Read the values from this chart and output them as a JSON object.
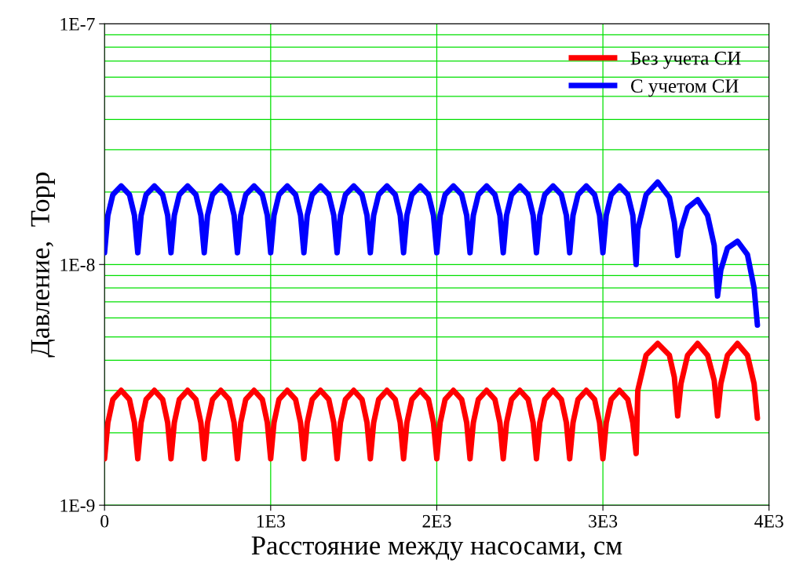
{
  "chart_data": {
    "type": "line",
    "xlabel": "Расстояние между насосами, см",
    "ylabel": "Давление,  Торр",
    "log": "y",
    "grid": true,
    "legend": "top right",
    "line_style": "solid",
    "marker": "none",
    "xlim": [
      0,
      4000
    ],
    "xticks": [
      0,
      {
        "value": 1000,
        "label": "1E3"
      },
      {
        "value": 2000,
        "label": "2E3"
      },
      {
        "value": 3000,
        "label": "3E3"
      },
      {
        "value": 4000,
        "label": "4E3"
      }
    ],
    "ylim": [
      1e-09,
      1e-07
    ],
    "yticks": [
      {
        "value": 1e-09,
        "label": "1E-9"
      },
      {
        "value": 1e-08,
        "label": "1E-8"
      },
      {
        "value": 1e-07,
        "label": "1E-7"
      }
    ],
    "x": [
      0,
      20,
      50,
      100,
      150,
      180,
      200,
      220,
      250,
      300,
      350,
      380,
      400,
      420,
      450,
      500,
      550,
      580,
      600,
      620,
      650,
      700,
      750,
      780,
      800,
      820,
      850,
      900,
      950,
      980,
      1000,
      1020,
      1050,
      1100,
      1150,
      1180,
      1200,
      1220,
      1250,
      1300,
      1350,
      1380,
      1400,
      1420,
      1450,
      1500,
      1550,
      1580,
      1600,
      1620,
      1650,
      1700,
      1750,
      1780,
      1800,
      1820,
      1850,
      1900,
      1950,
      1980,
      2000,
      2020,
      2050,
      2100,
      2150,
      2180,
      2200,
      2220,
      2250,
      2300,
      2350,
      2380,
      2400,
      2420,
      2450,
      2500,
      2550,
      2580,
      2600,
      2620,
      2650,
      2700,
      2750,
      2780,
      2800,
      2820,
      2850,
      2900,
      2950,
      2980,
      3000,
      3020,
      3050,
      3100,
      3150,
      3180,
      3200,
      3210,
      3260,
      3330,
      3400,
      3430,
      3450,
      3470,
      3510,
      3570,
      3630,
      3670,
      3690,
      3710,
      3750,
      3810,
      3870,
      3910,
      3930
    ],
    "series": [
      {
        "name": "Без учета СИ",
        "color": "#ff0000",
        "values": [
          1.56e-09,
          2.2e-09,
          2.75e-09,
          3e-09,
          2.75e-09,
          2.2e-09,
          1.56e-09,
          2.2e-09,
          2.75e-09,
          3e-09,
          2.75e-09,
          2.2e-09,
          1.56e-09,
          2.2e-09,
          2.75e-09,
          3e-09,
          2.75e-09,
          2.2e-09,
          1.56e-09,
          2.2e-09,
          2.75e-09,
          3e-09,
          2.75e-09,
          2.2e-09,
          1.56e-09,
          2.2e-09,
          2.75e-09,
          3e-09,
          2.75e-09,
          2.2e-09,
          1.56e-09,
          2.2e-09,
          2.75e-09,
          3e-09,
          2.75e-09,
          2.2e-09,
          1.56e-09,
          2.2e-09,
          2.75e-09,
          3e-09,
          2.75e-09,
          2.2e-09,
          1.56e-09,
          2.2e-09,
          2.75e-09,
          3e-09,
          2.75e-09,
          2.2e-09,
          1.56e-09,
          2.2e-09,
          2.75e-09,
          3e-09,
          2.75e-09,
          2.2e-09,
          1.56e-09,
          2.2e-09,
          2.75e-09,
          3e-09,
          2.75e-09,
          2.2e-09,
          1.56e-09,
          2.2e-09,
          2.75e-09,
          3e-09,
          2.75e-09,
          2.2e-09,
          1.56e-09,
          2.2e-09,
          2.75e-09,
          3e-09,
          2.75e-09,
          2.2e-09,
          1.56e-09,
          2.2e-09,
          2.75e-09,
          3e-09,
          2.75e-09,
          2.2e-09,
          1.56e-09,
          2.2e-09,
          2.75e-09,
          3e-09,
          2.75e-09,
          2.2e-09,
          1.56e-09,
          2.2e-09,
          2.75e-09,
          3e-09,
          2.75e-09,
          2.2e-09,
          1.56e-09,
          2.2e-09,
          2.75e-09,
          3e-09,
          2.75e-09,
          2.2e-09,
          1.64e-09,
          3e-09,
          4.2e-09,
          4.7e-09,
          4.2e-09,
          3.4e-09,
          2.35e-09,
          3.2e-09,
          4.2e-09,
          4.7e-09,
          4.2e-09,
          3.3e-09,
          2.35e-09,
          3.2e-09,
          4.2e-09,
          4.7e-09,
          4.2e-09,
          3.2e-09,
          2.3e-09
        ]
      },
      {
        "name": "С учетом СИ",
        "color": "#0000ff",
        "values": [
          1.12e-08,
          1.6e-08,
          1.95e-08,
          2.12e-08,
          1.95e-08,
          1.6e-08,
          1.12e-08,
          1.6e-08,
          1.95e-08,
          2.12e-08,
          1.95e-08,
          1.6e-08,
          1.12e-08,
          1.6e-08,
          1.95e-08,
          2.12e-08,
          1.95e-08,
          1.6e-08,
          1.12e-08,
          1.6e-08,
          1.95e-08,
          2.12e-08,
          1.95e-08,
          1.6e-08,
          1.12e-08,
          1.6e-08,
          1.95e-08,
          2.12e-08,
          1.95e-08,
          1.6e-08,
          1.12e-08,
          1.6e-08,
          1.95e-08,
          2.12e-08,
          1.95e-08,
          1.6e-08,
          1.12e-08,
          1.6e-08,
          1.95e-08,
          2.12e-08,
          1.95e-08,
          1.6e-08,
          1.12e-08,
          1.6e-08,
          1.95e-08,
          2.12e-08,
          1.95e-08,
          1.6e-08,
          1.12e-08,
          1.6e-08,
          1.95e-08,
          2.12e-08,
          1.95e-08,
          1.6e-08,
          1.12e-08,
          1.6e-08,
          1.95e-08,
          2.12e-08,
          1.95e-08,
          1.6e-08,
          1.12e-08,
          1.6e-08,
          1.95e-08,
          2.12e-08,
          1.95e-08,
          1.6e-08,
          1.12e-08,
          1.6e-08,
          1.95e-08,
          2.12e-08,
          1.95e-08,
          1.6e-08,
          1.12e-08,
          1.6e-08,
          1.95e-08,
          2.12e-08,
          1.95e-08,
          1.6e-08,
          1.12e-08,
          1.6e-08,
          1.95e-08,
          2.12e-08,
          1.95e-08,
          1.6e-08,
          1.12e-08,
          1.6e-08,
          1.95e-08,
          2.12e-08,
          1.95e-08,
          1.6e-08,
          1.12e-08,
          1.6e-08,
          1.95e-08,
          2.12e-08,
          1.95e-08,
          1.6e-08,
          1e-08,
          1.4e-08,
          1.95e-08,
          2.2e-08,
          1.9e-08,
          1.5e-08,
          1.09e-08,
          1.4e-08,
          1.72e-08,
          1.86e-08,
          1.6e-08,
          1.2e-08,
          7.4e-09,
          9.5e-09,
          1.17e-08,
          1.25e-08,
          1.1e-08,
          8e-09,
          5.6e-09
        ]
      }
    ]
  }
}
